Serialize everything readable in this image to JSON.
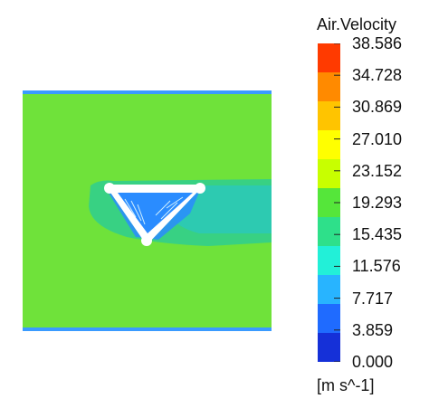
{
  "legend": {
    "title": "Air.Velocity",
    "units": "[m s^-1]",
    "min": 0.0,
    "max": 38.586,
    "ticks": [
      "38.586",
      "34.728",
      "30.869",
      "27.010",
      "23.152",
      "19.293",
      "15.435",
      "11.576",
      "7.717",
      "3.859",
      "0.000"
    ],
    "bands_top_to_bottom": [
      "#ff3a00",
      "#ff8a00",
      "#ffc400",
      "#ffff00",
      "#c8ff00",
      "#55e63a",
      "#2ee08a",
      "#22f0d8",
      "#28b4ff",
      "#1f6bff",
      "#1530d8"
    ]
  },
  "contour_plot": {
    "background_color": "#6fe23a",
    "obstacle_shape": "inverted-triangle",
    "wake_color": "#28d0b0",
    "low_velocity_color": "#2a8cff"
  }
}
